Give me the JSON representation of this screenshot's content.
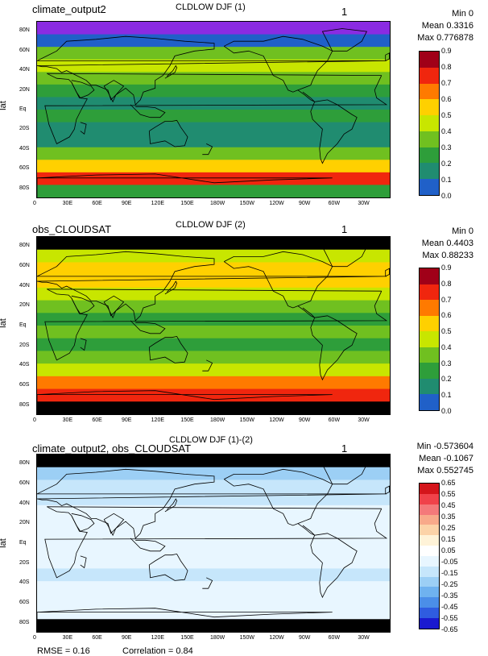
{
  "chart_data": [
    {
      "type": "heatmap",
      "title": "CLDLOW DJF (1)",
      "left_label": "climate_output2",
      "right_label": "1",
      "ylabel": "lat",
      "stats": {
        "min": "Min 0",
        "mean": "Mean 0.3316",
        "max": "Max 0.776878"
      },
      "x_ticks": [
        "0",
        "30E",
        "60E",
        "90E",
        "120E",
        "150E",
        "180W",
        "150W",
        "120W",
        "90W",
        "60W",
        "30W"
      ],
      "y_ticks": [
        "80N",
        "60N",
        "40N",
        "20N",
        "Eq",
        "20S",
        "40S",
        "60S",
        "80S"
      ],
      "colorbar_labels": [
        "0.9",
        "0.8",
        "0.7",
        "0.6",
        "0.5",
        "0.4",
        "0.3",
        "0.2",
        "0.1",
        "0.0"
      ],
      "colorbar_colors": [
        "#a00018",
        "#f0260e",
        "#ff7a00",
        "#ffd000",
        "#c8e600",
        "#70c020",
        "#2e9e3a",
        "#208c70",
        "#2060c8",
        "#8a2be2"
      ],
      "lat_profile": [
        0.05,
        0.15,
        0.45,
        0.55,
        0.45,
        0.35,
        0.3,
        0.35,
        0.25,
        0.3,
        0.45,
        0.7,
        0.85,
        0.35
      ]
    },
    {
      "type": "heatmap",
      "title": "CLDLOW DJF (2)",
      "left_label": "obs_CLOUDSAT",
      "right_label": "1",
      "ylabel": "lat",
      "stats": {
        "min": "Min 0",
        "mean": "Mean 0.4403",
        "max": "Max 0.88233"
      },
      "x_ticks": [
        "0",
        "30E",
        "60E",
        "90E",
        "120E",
        "150E",
        "180W",
        "150W",
        "120W",
        "90W",
        "60W",
        "30W"
      ],
      "y_ticks": [
        "80N",
        "60N",
        "40N",
        "20N",
        "Eq",
        "20S",
        "40S",
        "60S",
        "80S"
      ],
      "colorbar_labels": [
        "0.9",
        "0.8",
        "0.7",
        "0.6",
        "0.5",
        "0.4",
        "0.3",
        "0.2",
        "0.1",
        "0.0"
      ],
      "colorbar_colors": [
        "#a00018",
        "#f0260e",
        "#ff7a00",
        "#ffd000",
        "#c8e600",
        "#70c020",
        "#2e9e3a",
        "#208c70",
        "#2060c8",
        "#8a2be2"
      ],
      "lat_profile": [
        0.0,
        0.6,
        0.7,
        0.65,
        0.5,
        0.4,
        0.35,
        0.4,
        0.35,
        0.4,
        0.55,
        0.75,
        0.85,
        0.0
      ]
    },
    {
      "type": "heatmap",
      "title": "CLDLOW DJF (1)-(2)",
      "left_label": "climate_output2, obs_CLOUDSAT",
      "right_label": "1",
      "ylabel": "lat",
      "stats": {
        "min": "Min -0.573604",
        "mean": "Mean -0.1067",
        "max": "Max 0.552745"
      },
      "x_ticks": [
        "0",
        "30E",
        "60E",
        "90E",
        "120E",
        "150E",
        "180W",
        "150W",
        "120W",
        "90W",
        "60W",
        "30W"
      ],
      "y_ticks": [
        "80N",
        "60N",
        "40N",
        "20N",
        "Eq",
        "20S",
        "40S",
        "60S",
        "80S"
      ],
      "colorbar_labels": [
        "0.65",
        "0.55",
        "0.45",
        "0.35",
        "0.25",
        "0.15",
        "0.05",
        "-0.05",
        "-0.15",
        "-0.25",
        "-0.35",
        "-0.45",
        "-0.55",
        "-0.65"
      ],
      "colorbar_colors": [
        "#d4151b",
        "#f0424a",
        "#f4797a",
        "#f8a98a",
        "#fcd3a8",
        "#fff3d8",
        "#ffffff",
        "#e8f6ff",
        "#c6e6fb",
        "#9ccff5",
        "#6fb2ef",
        "#4b8ee8",
        "#2f5ce0",
        "#1a1ad0"
      ],
      "lat_profile": [
        0.0,
        -0.25,
        -0.2,
        -0.2,
        -0.1,
        -0.1,
        -0.1,
        -0.1,
        -0.1,
        -0.15,
        -0.1,
        -0.05,
        -0.05,
        0.0
      ]
    }
  ],
  "footer": {
    "rmse": "RMSE = 0.16",
    "correlation": "Correlation = 0.84"
  }
}
